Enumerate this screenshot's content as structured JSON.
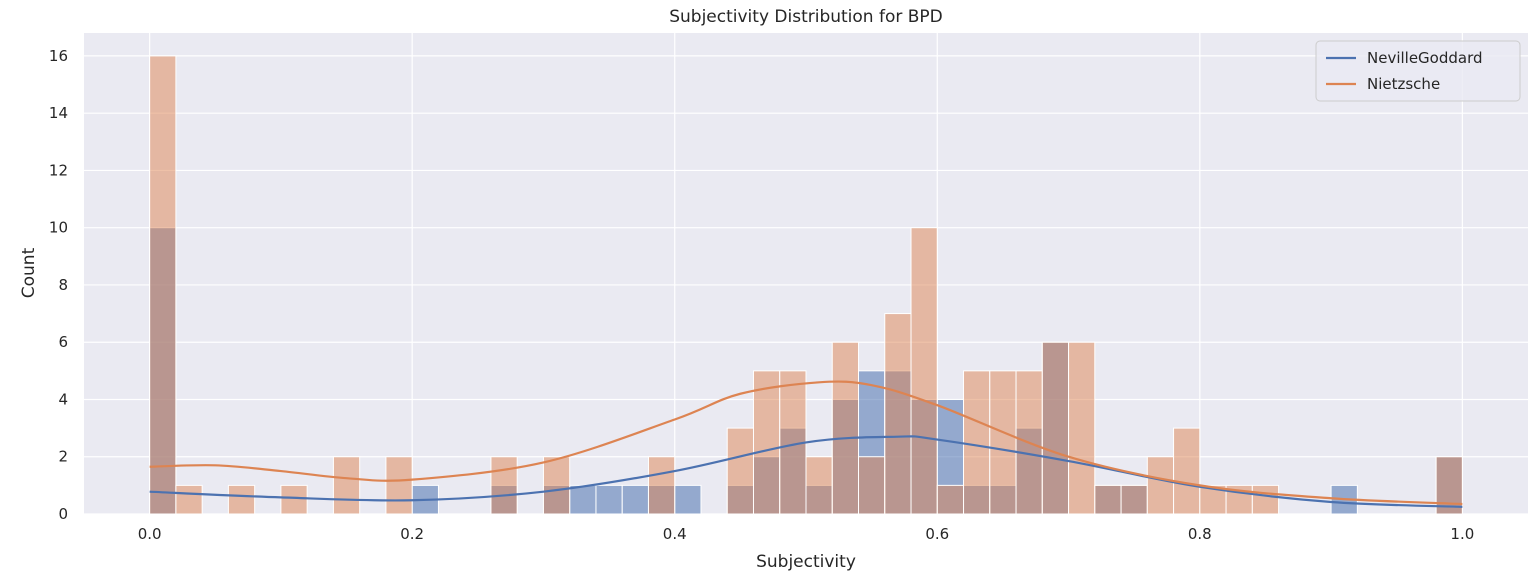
{
  "chart_data": {
    "type": "histogram",
    "title": "Subjectivity Distribution for BPD",
    "xlabel": "Subjectivity",
    "ylabel": "Count",
    "xlim": [
      -0.05,
      1.05
    ],
    "ylim": [
      0,
      16.8
    ],
    "xticks": [
      0.0,
      0.2,
      0.4,
      0.6,
      0.8,
      1.0
    ],
    "xtick_labels": [
      "0.0",
      "0.2",
      "0.4",
      "0.6",
      "0.8",
      "1.0"
    ],
    "yticks": [
      0,
      2,
      4,
      6,
      8,
      10,
      12,
      14,
      16
    ],
    "ytick_labels": [
      "0",
      "2",
      "4",
      "6",
      "8",
      "10",
      "12",
      "14",
      "16"
    ],
    "grid": true,
    "legend_position": "top-right",
    "bins": 50,
    "bin_range": [
      0,
      1
    ],
    "series": [
      {
        "name": "NevilleGoddard",
        "color": "#4c72b0",
        "counts": [
          10,
          0,
          0,
          0,
          0,
          0,
          0,
          0,
          0,
          0,
          1,
          0,
          0,
          1,
          0,
          1,
          1,
          1,
          1,
          1,
          1,
          0,
          1,
          2,
          3,
          1,
          4,
          5,
          5,
          4,
          4,
          1,
          1,
          3,
          6,
          0,
          1,
          1,
          0,
          0,
          0,
          0,
          0,
          0,
          0,
          1,
          0,
          0,
          0,
          2
        ],
        "kde_x": [
          0.0,
          0.1,
          0.2,
          0.3,
          0.4,
          0.5,
          0.57,
          0.6,
          0.7,
          0.8,
          0.9,
          1.0
        ],
        "kde_y": [
          0.78,
          0.58,
          0.48,
          0.78,
          1.5,
          2.5,
          2.7,
          2.6,
          1.85,
          0.95,
          0.42,
          0.25
        ]
      },
      {
        "name": "Nietzsche",
        "color": "#dd8452",
        "counts": [
          16,
          1,
          0,
          1,
          0,
          1,
          0,
          2,
          0,
          2,
          0,
          0,
          0,
          2,
          0,
          2,
          0,
          0,
          0,
          2,
          0,
          0,
          3,
          5,
          5,
          2,
          6,
          2,
          7,
          10,
          1,
          5,
          5,
          5,
          6,
          6,
          1,
          1,
          2,
          3,
          1,
          1,
          1,
          0,
          0,
          0,
          0,
          0,
          0,
          2
        ],
        "kde_x": [
          0.0,
          0.05,
          0.1,
          0.15,
          0.2,
          0.3,
          0.4,
          0.45,
          0.51,
          0.55,
          0.6,
          0.7,
          0.8,
          0.9,
          1.0
        ],
        "kde_y": [
          1.65,
          1.7,
          1.5,
          1.25,
          1.2,
          1.8,
          3.3,
          4.2,
          4.6,
          4.5,
          3.8,
          2.0,
          1.0,
          0.55,
          0.35
        ]
      }
    ]
  }
}
